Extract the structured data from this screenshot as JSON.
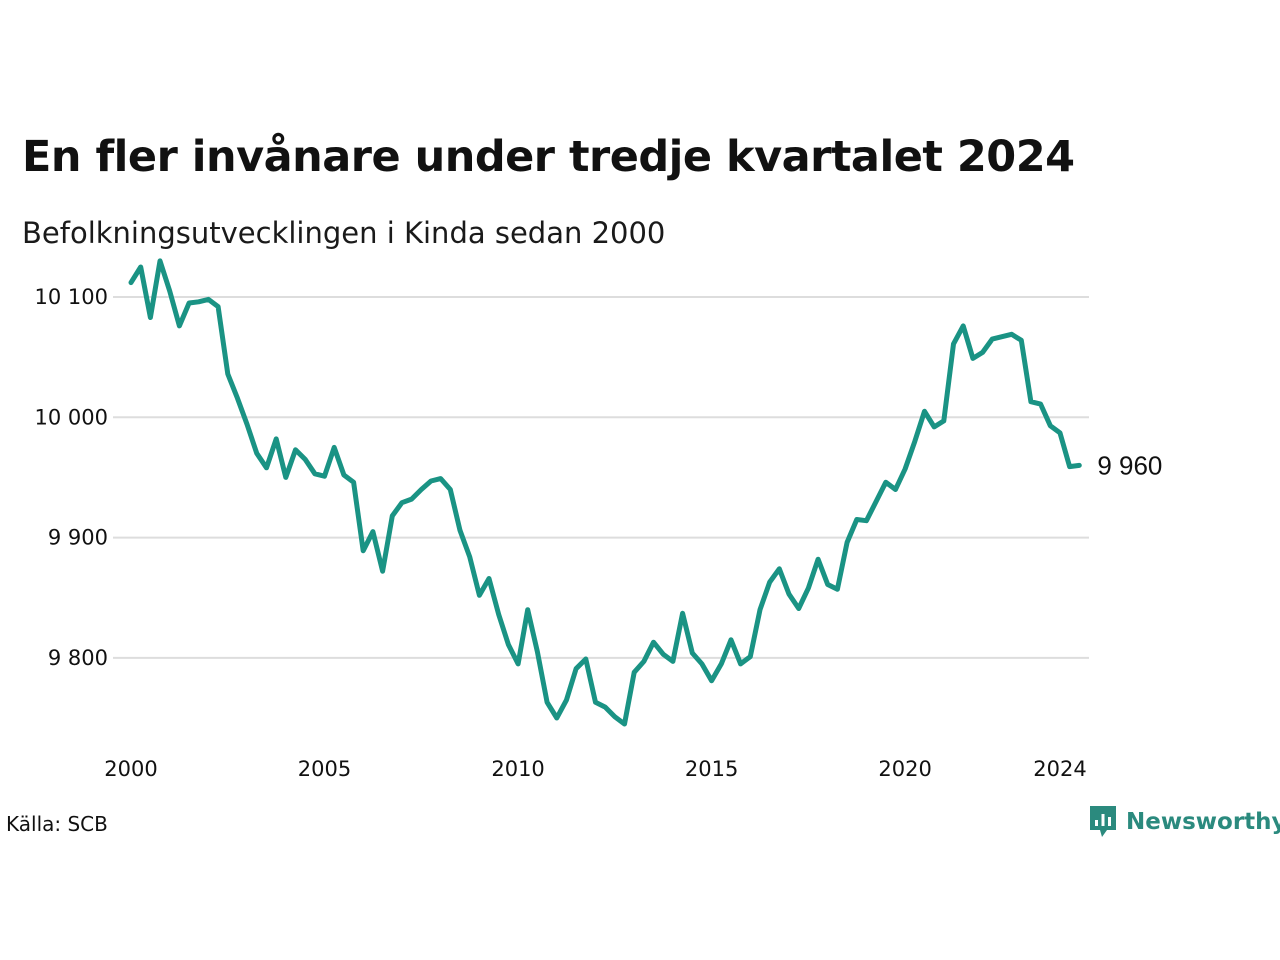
{
  "title": "En fler invånare under tredje kvartalet 2024",
  "subtitle": "Befolkningsutvecklingen i Kinda sedan 2000",
  "source": "Källa: SCB",
  "brand": "Newsworthy",
  "colors": {
    "line": "#1a9384",
    "grid": "#dddddd",
    "brand": "#2b8a7e",
    "text": "#111111"
  },
  "chart_data": {
    "type": "line",
    "title": "En fler invånare under tredje kvartalet 2024",
    "subtitle": "Befolkningsutvecklingen i Kinda sedan 2000",
    "xlabel": "",
    "ylabel": "",
    "xlim": [
      2000,
      2024.75
    ],
    "ylim": [
      9740,
      10110
    ],
    "grid": true,
    "legend": "none",
    "x_ticks": [
      {
        "value": 2000,
        "label": "2000"
      },
      {
        "value": 2005,
        "label": "2005"
      },
      {
        "value": 2010,
        "label": "2010"
      },
      {
        "value": 2015,
        "label": "2015"
      },
      {
        "value": 2020,
        "label": "2020"
      },
      {
        "value": 2024,
        "label": "2024"
      }
    ],
    "y_ticks": [
      {
        "value": 9800,
        "label": "9 800"
      },
      {
        "value": 9900,
        "label": "9 900"
      },
      {
        "value": 10000,
        "label": "10 000"
      },
      {
        "value": 10100,
        "label": "10 100"
      }
    ],
    "end_label": "9 960",
    "series": [
      {
        "values": [
          [
            2000.0,
            10112
          ],
          [
            2000.25,
            10125
          ],
          [
            2000.5,
            10083
          ],
          [
            2000.75,
            10130
          ],
          [
            2001.0,
            10105
          ],
          [
            2001.25,
            10076
          ],
          [
            2001.5,
            10095
          ],
          [
            2001.75,
            10096
          ],
          [
            2002.0,
            10098
          ],
          [
            2002.25,
            10092
          ],
          [
            2002.5,
            10036
          ],
          [
            2002.75,
            10016
          ],
          [
            2003.0,
            9994
          ],
          [
            2003.25,
            9970
          ],
          [
            2003.5,
            9958
          ],
          [
            2003.75,
            9982
          ],
          [
            2004.0,
            9950
          ],
          [
            2004.25,
            9973
          ],
          [
            2004.5,
            9965
          ],
          [
            2004.75,
            9953
          ],
          [
            2005.0,
            9951
          ],
          [
            2005.25,
            9975
          ],
          [
            2005.5,
            9952
          ],
          [
            2005.75,
            9946
          ],
          [
            2006.0,
            9889
          ],
          [
            2006.25,
            9905
          ],
          [
            2006.5,
            9872
          ],
          [
            2006.75,
            9918
          ],
          [
            2007.0,
            9929
          ],
          [
            2007.25,
            9932
          ],
          [
            2007.5,
            9940
          ],
          [
            2007.75,
            9947
          ],
          [
            2008.0,
            9949
          ],
          [
            2008.25,
            9940
          ],
          [
            2008.5,
            9906
          ],
          [
            2008.75,
            9884
          ],
          [
            2009.0,
            9852
          ],
          [
            2009.25,
            9866
          ],
          [
            2009.5,
            9836
          ],
          [
            2009.75,
            9811
          ],
          [
            2010.0,
            9795
          ],
          [
            2010.25,
            9840
          ],
          [
            2010.5,
            9805
          ],
          [
            2010.75,
            9763
          ],
          [
            2011.0,
            9750
          ],
          [
            2011.25,
            9765
          ],
          [
            2011.5,
            9791
          ],
          [
            2011.75,
            9799
          ],
          [
            2012.0,
            9763
          ],
          [
            2012.25,
            9759
          ],
          [
            2012.5,
            9751
          ],
          [
            2012.75,
            9745
          ],
          [
            2013.0,
            9788
          ],
          [
            2013.25,
            9797
          ],
          [
            2013.5,
            9813
          ],
          [
            2013.75,
            9803
          ],
          [
            2014.0,
            9797
          ],
          [
            2014.25,
            9837
          ],
          [
            2014.5,
            9804
          ],
          [
            2014.75,
            9795
          ],
          [
            2015.0,
            9781
          ],
          [
            2015.25,
            9795
          ],
          [
            2015.5,
            9815
          ],
          [
            2015.75,
            9795
          ],
          [
            2016.0,
            9801
          ],
          [
            2016.25,
            9840
          ],
          [
            2016.5,
            9863
          ],
          [
            2016.75,
            9874
          ],
          [
            2017.0,
            9853
          ],
          [
            2017.25,
            9841
          ],
          [
            2017.5,
            9858
          ],
          [
            2017.75,
            9882
          ],
          [
            2018.0,
            9861
          ],
          [
            2018.25,
            9857
          ],
          [
            2018.5,
            9896
          ],
          [
            2018.75,
            9915
          ],
          [
            2019.0,
            9914
          ],
          [
            2019.25,
            9930
          ],
          [
            2019.5,
            9946
          ],
          [
            2019.75,
            9940
          ],
          [
            2020.0,
            9957
          ],
          [
            2020.25,
            9980
          ],
          [
            2020.5,
            10005
          ],
          [
            2020.75,
            9992
          ],
          [
            2021.0,
            9997
          ],
          [
            2021.25,
            10061
          ],
          [
            2021.5,
            10076
          ],
          [
            2021.75,
            10049
          ],
          [
            2022.0,
            10054
          ],
          [
            2022.25,
            10065
          ],
          [
            2022.5,
            10067
          ],
          [
            2022.75,
            10069
          ],
          [
            2023.0,
            10064
          ],
          [
            2023.25,
            10013
          ],
          [
            2023.5,
            10011
          ],
          [
            2023.75,
            9993
          ],
          [
            2024.0,
            9987
          ],
          [
            2024.25,
            9959
          ],
          [
            2024.5,
            9960
          ]
        ]
      }
    ]
  }
}
